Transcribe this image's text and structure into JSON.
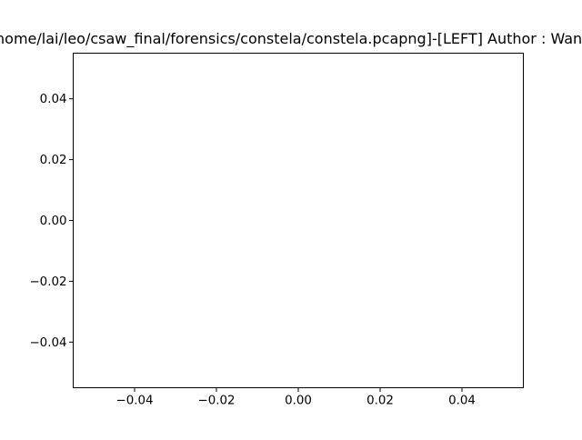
{
  "chart_data": {
    "type": "scatter",
    "title": "/home/lai/leo/csaw_final/forensics/constela/constela.pcapng]-[LEFT] Author : Wang",
    "xlabel": "",
    "ylabel": "",
    "xlim": [
      -0.055,
      0.055
    ],
    "ylim": [
      -0.055,
      0.055
    ],
    "xticks": [
      -0.04,
      -0.02,
      0.0,
      0.02,
      0.04
    ],
    "xtick_labels": [
      "−0.04",
      "−0.02",
      "0.00",
      "0.02",
      "0.04"
    ],
    "yticks": [
      -0.04,
      -0.02,
      0.0,
      0.02,
      0.04
    ],
    "ytick_labels": [
      "−0.04",
      "−0.02",
      "0.00",
      "0.02",
      "0.04"
    ],
    "series": [
      {
        "x": [],
        "y": []
      }
    ],
    "grid": false,
    "legend": false
  }
}
